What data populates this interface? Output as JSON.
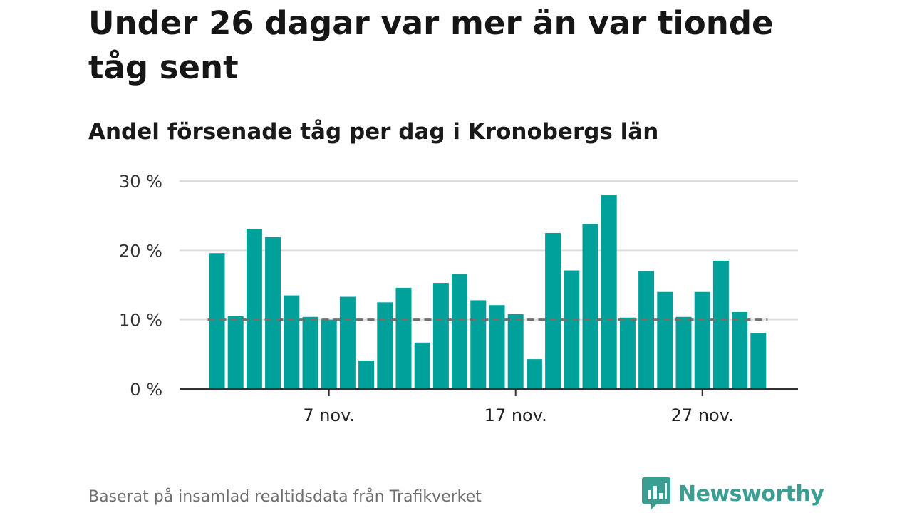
{
  "header": {
    "title": "Under 26 dagar var mer än var tionde tåg sent",
    "subtitle": "Andel försenade tåg per dag i Kronobergs län"
  },
  "footer": {
    "source": "Baserat på insamlad realtidsdata från Trafikverket",
    "brand": "Newsworthy"
  },
  "colors": {
    "bar": "#00a19a",
    "reference_line": "#707070",
    "grid": "#dddddd",
    "axis": "#333333",
    "brand": "#3a9e93"
  },
  "chart_data": {
    "type": "bar",
    "x": [
      "1 nov.",
      "2 nov.",
      "3 nov.",
      "4 nov.",
      "5 nov.",
      "6 nov.",
      "7 nov.",
      "8 nov.",
      "9 nov.",
      "10 nov.",
      "11 nov.",
      "12 nov.",
      "13 nov.",
      "14 nov.",
      "15 nov.",
      "16 nov.",
      "17 nov.",
      "18 nov.",
      "19 nov.",
      "20 nov.",
      "21 nov.",
      "22 nov.",
      "23 nov.",
      "24 nov.",
      "25 nov.",
      "26 nov.",
      "27 nov.",
      "28 nov.",
      "29 nov.",
      "30 nov."
    ],
    "values": [
      19.6,
      10.5,
      23.1,
      21.9,
      13.5,
      10.4,
      10.0,
      13.3,
      4.1,
      12.5,
      14.6,
      6.7,
      15.3,
      16.6,
      12.8,
      12.1,
      10.8,
      4.3,
      22.5,
      17.1,
      23.8,
      28.0,
      10.3,
      17.0,
      14.0,
      10.4,
      14.0,
      18.5,
      11.1,
      8.1
    ],
    "ylim": [
      0,
      30
    ],
    "yticks": [
      0,
      10,
      20,
      30
    ],
    "ytick_labels": [
      "0 %",
      "10 %",
      "20 %",
      "30 %"
    ],
    "xtick_labels": [
      {
        "at": "7 nov.",
        "label": "7 nov."
      },
      {
        "at": "17 nov.",
        "label": "17 nov."
      },
      {
        "at": "27 nov.",
        "label": "27 nov."
      }
    ],
    "reference_line": {
      "value": 10,
      "style": "dashed"
    },
    "grid": true
  }
}
